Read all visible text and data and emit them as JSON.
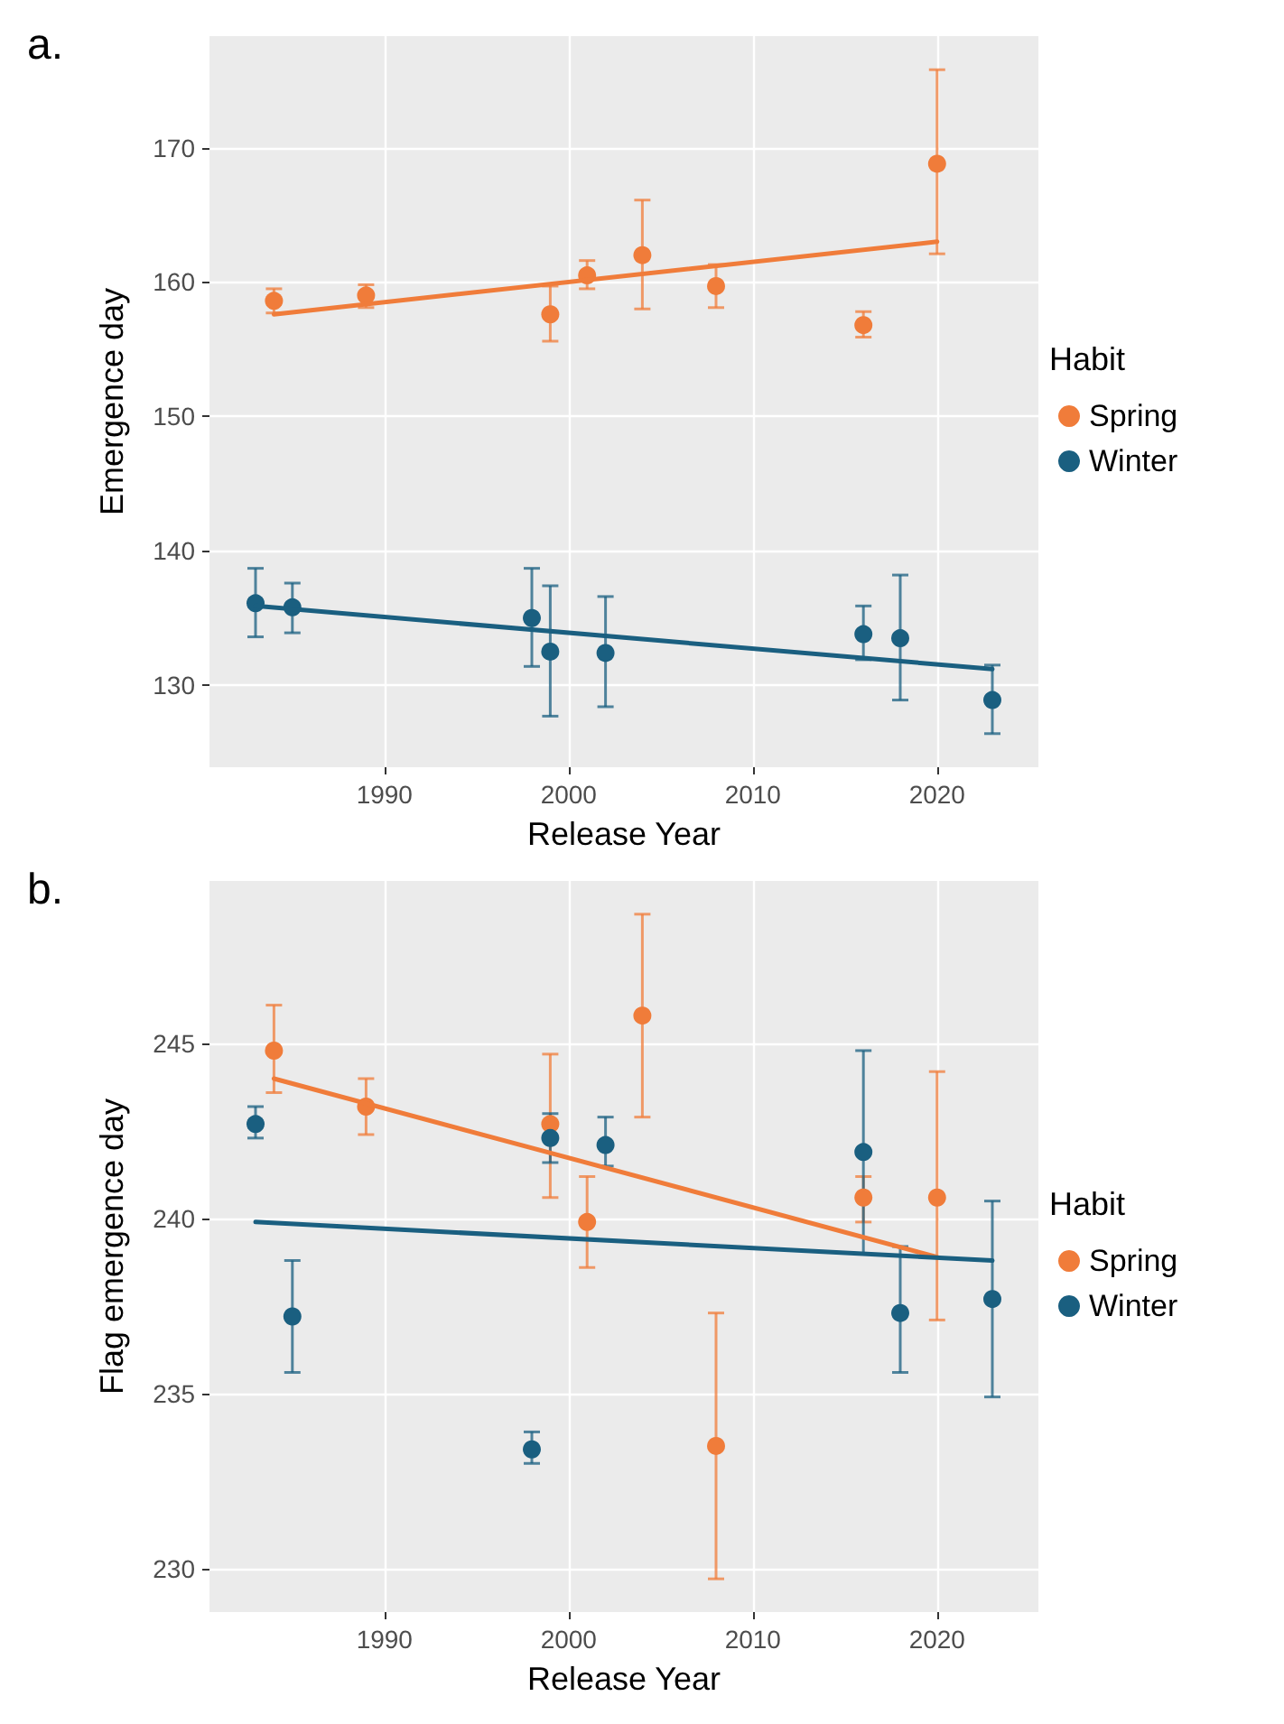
{
  "chart_data": [
    {
      "type": "scatter",
      "title": "a.",
      "xlabel": "Release Year",
      "ylabel": "Emergence day",
      "legend_title": "Habit",
      "legend": "right",
      "grid": true,
      "marker": "circle",
      "xlim": [
        1980.5,
        2025.5
      ],
      "xticks": [
        1990,
        2000,
        2010,
        2020
      ],
      "ylim": [
        123.9,
        178.3
      ],
      "yticks": [
        130,
        140,
        150,
        160,
        170
      ],
      "series": [
        {
          "name": "Spring",
          "color": "#f07c3a",
          "x": [
            1984,
            1989,
            1999,
            2001,
            2004,
            2008,
            2016,
            2020
          ],
          "values": [
            158.6,
            159.0,
            157.6,
            160.5,
            162.0,
            159.7,
            156.8,
            168.8
          ],
          "errors": [
            [
              157.7,
              159.5
            ],
            [
              158.1,
              159.8
            ],
            [
              155.6,
              159.7
            ],
            [
              159.5,
              161.6
            ],
            [
              158.0,
              166.1
            ],
            [
              158.1,
              161.3
            ],
            [
              155.9,
              157.8
            ],
            [
              162.1,
              175.8
            ]
          ]
        },
        {
          "name": "Winter",
          "color": "#1a5f80",
          "x": [
            1983,
            1985,
            1998,
            1999,
            2002,
            2016,
            2018,
            2023
          ],
          "values": [
            136.1,
            135.8,
            135.0,
            132.5,
            132.4,
            133.8,
            133.5,
            128.9
          ],
          "errors": [
            [
              133.6,
              138.7
            ],
            [
              133.9,
              137.6
            ],
            [
              131.4,
              138.7
            ],
            [
              127.7,
              137.4
            ],
            [
              128.4,
              136.6
            ],
            [
              131.9,
              135.9
            ],
            [
              128.9,
              138.2
            ],
            [
              126.4,
              131.5
            ]
          ]
        },
        {
          "type": "line",
          "marker": "none",
          "color": "#f07c3a",
          "x": [
            1984,
            2020
          ],
          "values": [
            157.6,
            163.0
          ]
        },
        {
          "type": "line",
          "marker": "none",
          "color": "#1a5f80",
          "x": [
            1983,
            2023
          ],
          "values": [
            135.9,
            131.2
          ]
        }
      ]
    },
    {
      "type": "scatter",
      "title": "b.",
      "xlabel": "Release Year",
      "ylabel": "Flag emergence day",
      "legend_title": "Habit",
      "legend": "right",
      "grid": true,
      "marker": "circle",
      "xlim": [
        1980.5,
        2025.5
      ],
      "xticks": [
        1990,
        2000,
        2010,
        2020
      ],
      "ylim": [
        228.75,
        249.65
      ],
      "yticks": [
        230,
        235,
        240,
        245
      ],
      "series": [
        {
          "name": "Spring",
          "color": "#f07c3a",
          "x": [
            1984,
            1989,
            1999,
            2001,
            2004,
            2008,
            2016,
            2020
          ],
          "values": [
            244.8,
            243.2,
            242.7,
            239.9,
            245.8,
            233.5,
            240.6,
            240.6
          ],
          "errors": [
            [
              243.6,
              246.1
            ],
            [
              242.4,
              244.0
            ],
            [
              240.6,
              244.7
            ],
            [
              238.6,
              241.2
            ],
            [
              242.9,
              248.7
            ],
            [
              229.7,
              237.3
            ],
            [
              239.9,
              241.2
            ],
            [
              237.1,
              244.2
            ]
          ]
        },
        {
          "name": "Winter",
          "color": "#1a5f80",
          "x": [
            1983,
            1985,
            1998,
            1999,
            2002,
            2016,
            2018,
            2023
          ],
          "values": [
            242.7,
            237.2,
            233.4,
            242.3,
            242.1,
            241.9,
            237.3,
            237.7
          ],
          "errors": [
            [
              242.3,
              243.2
            ],
            [
              235.6,
              238.8
            ],
            [
              233.0,
              233.9
            ],
            [
              241.6,
              243.0
            ],
            [
              241.5,
              242.9
            ],
            [
              239.0,
              244.8
            ],
            [
              235.6,
              239.2
            ],
            [
              234.9,
              240.5
            ]
          ]
        },
        {
          "type": "line",
          "marker": "none",
          "color": "#f07c3a",
          "x": [
            1984,
            2020
          ],
          "values": [
            244.0,
            238.9
          ]
        },
        {
          "type": "line",
          "marker": "none",
          "color": "#1a5f80",
          "x": [
            1983,
            2023
          ],
          "values": [
            239.9,
            238.8
          ]
        }
      ]
    }
  ]
}
